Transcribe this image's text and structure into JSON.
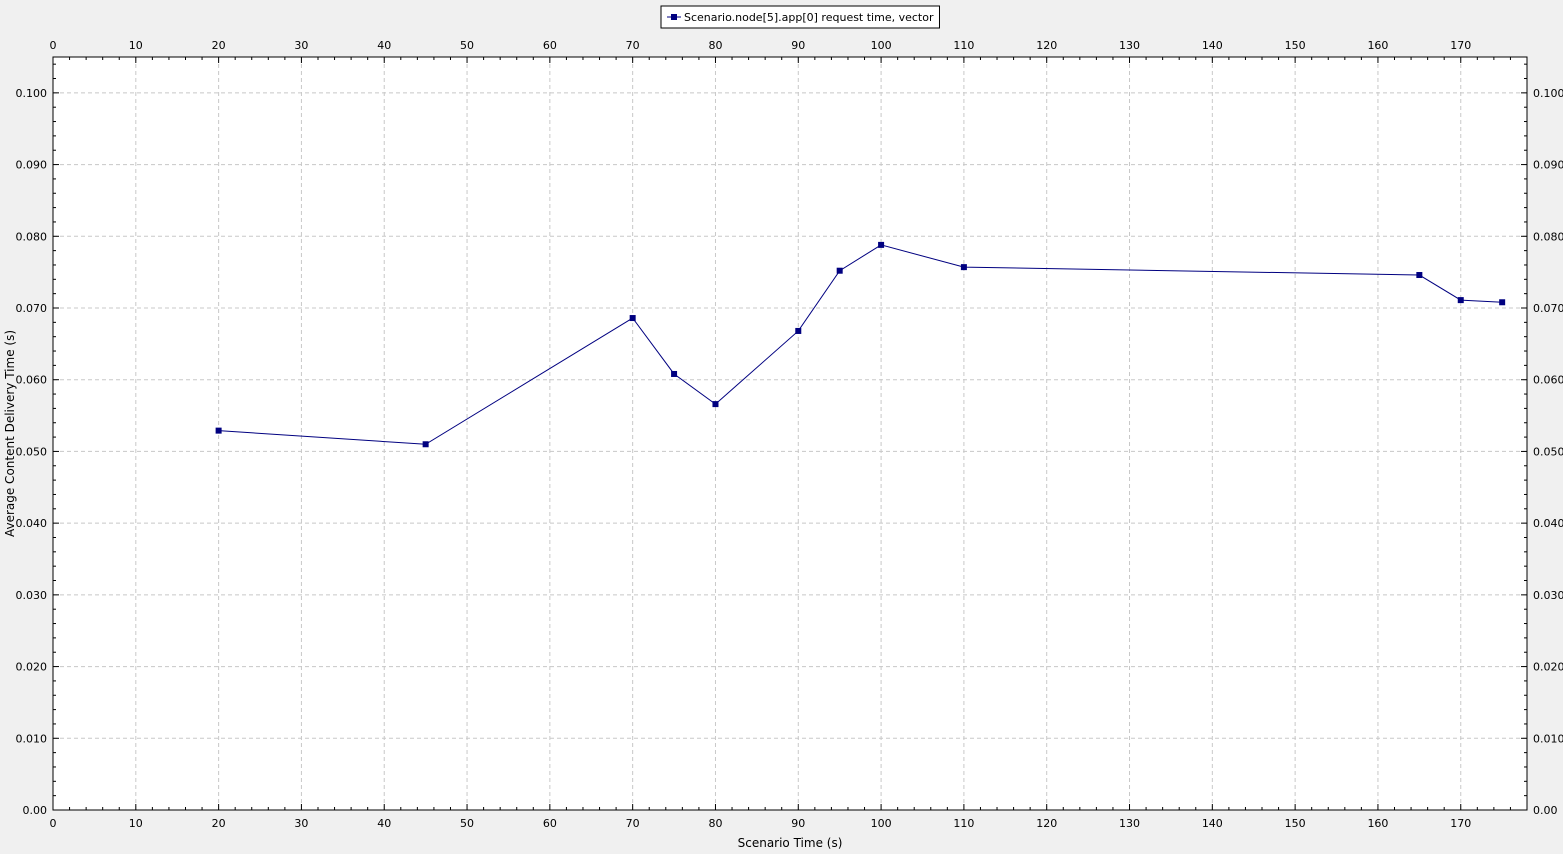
{
  "chart_data": {
    "type": "line",
    "title": "",
    "xlabel": "Scenario Time (s)",
    "ylabel": "Average Content Delivery Time (s)",
    "xlim": [
      0,
      178
    ],
    "ylim": [
      0,
      0.105
    ],
    "x_ticks": [
      0,
      10,
      20,
      30,
      40,
      50,
      60,
      70,
      80,
      90,
      100,
      110,
      120,
      130,
      140,
      150,
      160,
      170
    ],
    "y_ticks": [
      0,
      0.01,
      0.02,
      0.03,
      0.04,
      0.05,
      0.06,
      0.07,
      0.08,
      0.09,
      0.1
    ],
    "x_tick_labels": [
      "0",
      "10",
      "20",
      "30",
      "40",
      "50",
      "60",
      "70",
      "80",
      "90",
      "100",
      "110",
      "120",
      "130",
      "140",
      "150",
      "160",
      "170"
    ],
    "y_tick_labels": [
      "0.00",
      "0.010",
      "0.020",
      "0.030",
      "0.040",
      "0.050",
      "0.060",
      "0.070",
      "0.080",
      "0.090",
      "0.100"
    ],
    "grid": true,
    "legend_position": "top-center",
    "series": [
      {
        "name": "Scenario.node[5].app[0] request time, vector",
        "color": "#000080",
        "marker": "square",
        "x": [
          20,
          45,
          70,
          75,
          80,
          90,
          95,
          100,
          110,
          165,
          170,
          175
        ],
        "y": [
          0.0529,
          0.051,
          0.0686,
          0.0608,
          0.0566,
          0.0668,
          0.0752,
          0.0788,
          0.0757,
          0.0746,
          0.0711,
          0.0708
        ]
      }
    ]
  }
}
